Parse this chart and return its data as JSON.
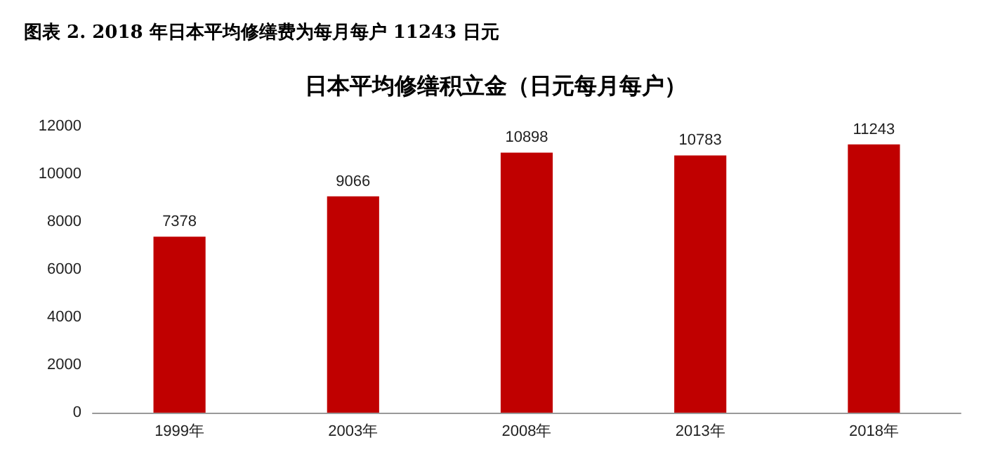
{
  "chart_data": {
    "type": "bar",
    "title": "图表 2. 2018 年日本平均修缮费为每月每户 11243 日元",
    "subtitle": "日本平均修缮积立金（日元每月每户）",
    "categories": [
      "1999年",
      "2003年",
      "2008年",
      "2013年",
      "2018年"
    ],
    "values": [
      7378,
      9066,
      10898,
      10783,
      11243
    ],
    "color": "#c00000",
    "ylim": [
      0,
      12000
    ],
    "yticks": [
      0,
      2000,
      4000,
      6000,
      8000,
      10000,
      12000
    ],
    "grid": false,
    "data_labels": true
  }
}
